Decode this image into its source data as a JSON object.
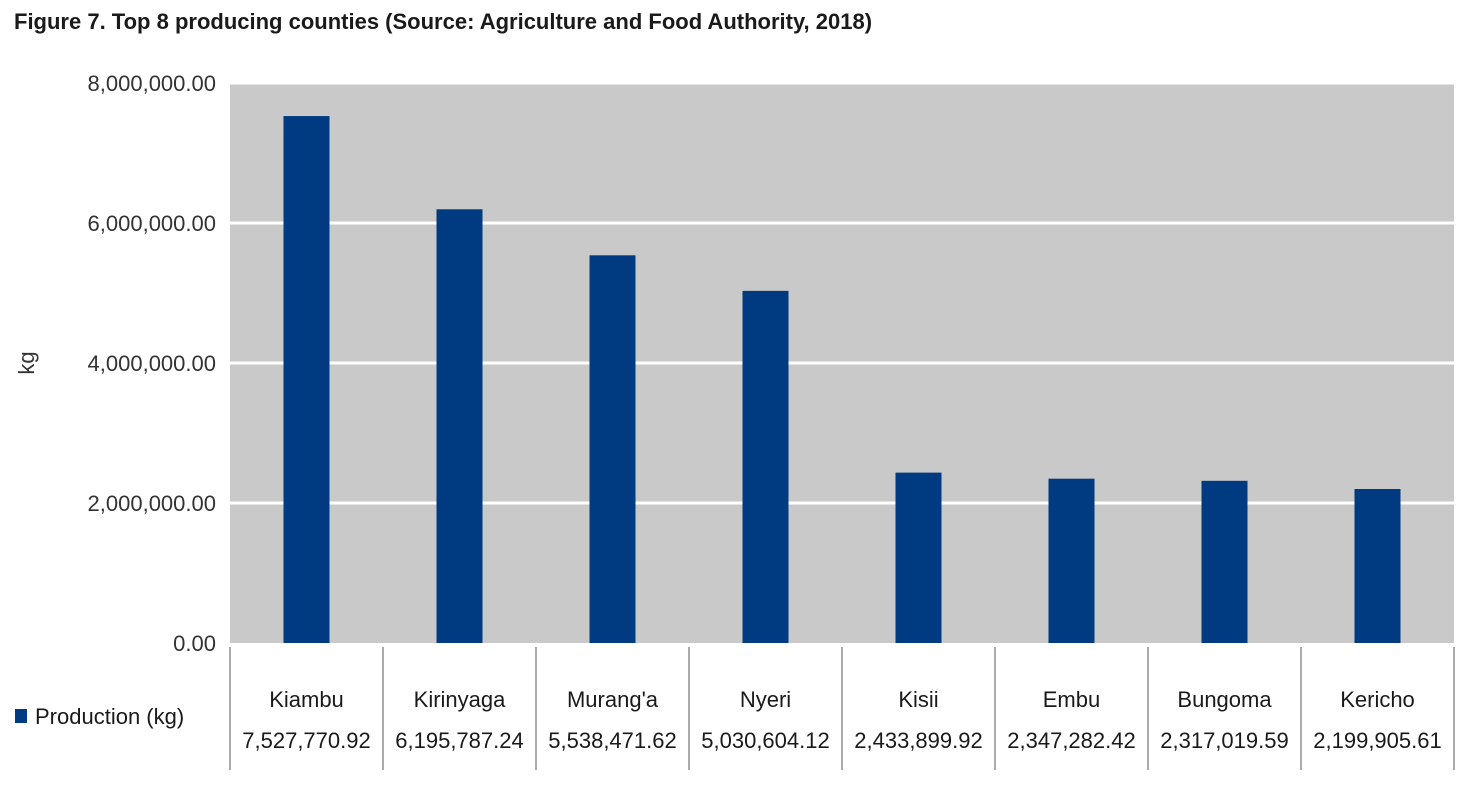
{
  "title": "Figure 7. Top 8 producing counties (Source: Agriculture and Food Authority, 2018)",
  "chart_data": {
    "type": "bar",
    "categories": [
      "Kiambu",
      "Kirinyaga",
      "Murang'a",
      "Nyeri",
      "Kisii",
      "Embu",
      "Bungoma",
      "Kericho"
    ],
    "series": [
      {
        "name": "Production (kg)",
        "values": [
          7527770.92,
          6195787.24,
          5538471.62,
          5030604.12,
          2433899.92,
          2347282.42,
          2317019.59,
          2199905.61
        ],
        "value_labels": [
          "7,527,770.92",
          "6,195,787.24",
          "5,538,471.62",
          "5,030,604.12",
          "2,433,899.92",
          "2,347,282.42",
          "2,317,019.59",
          "2,199,905.61"
        ]
      }
    ],
    "ylabel": "kg",
    "xlabel": "",
    "ylim": [
      0,
      8000000
    ],
    "yticks": [
      0,
      2000000,
      4000000,
      6000000,
      8000000
    ],
    "ytick_labels": [
      "0.00",
      "2,000,000.00",
      "4,000,000.00",
      "6,000,000.00",
      "8,000,000.00"
    ],
    "grid": true,
    "legend_position": "bottom-left",
    "data_table": true
  },
  "colors": {
    "bar": "#003a80",
    "plot_background": "#c9c9c9",
    "gridline": "#ffffff",
    "table_line": "#555555"
  }
}
